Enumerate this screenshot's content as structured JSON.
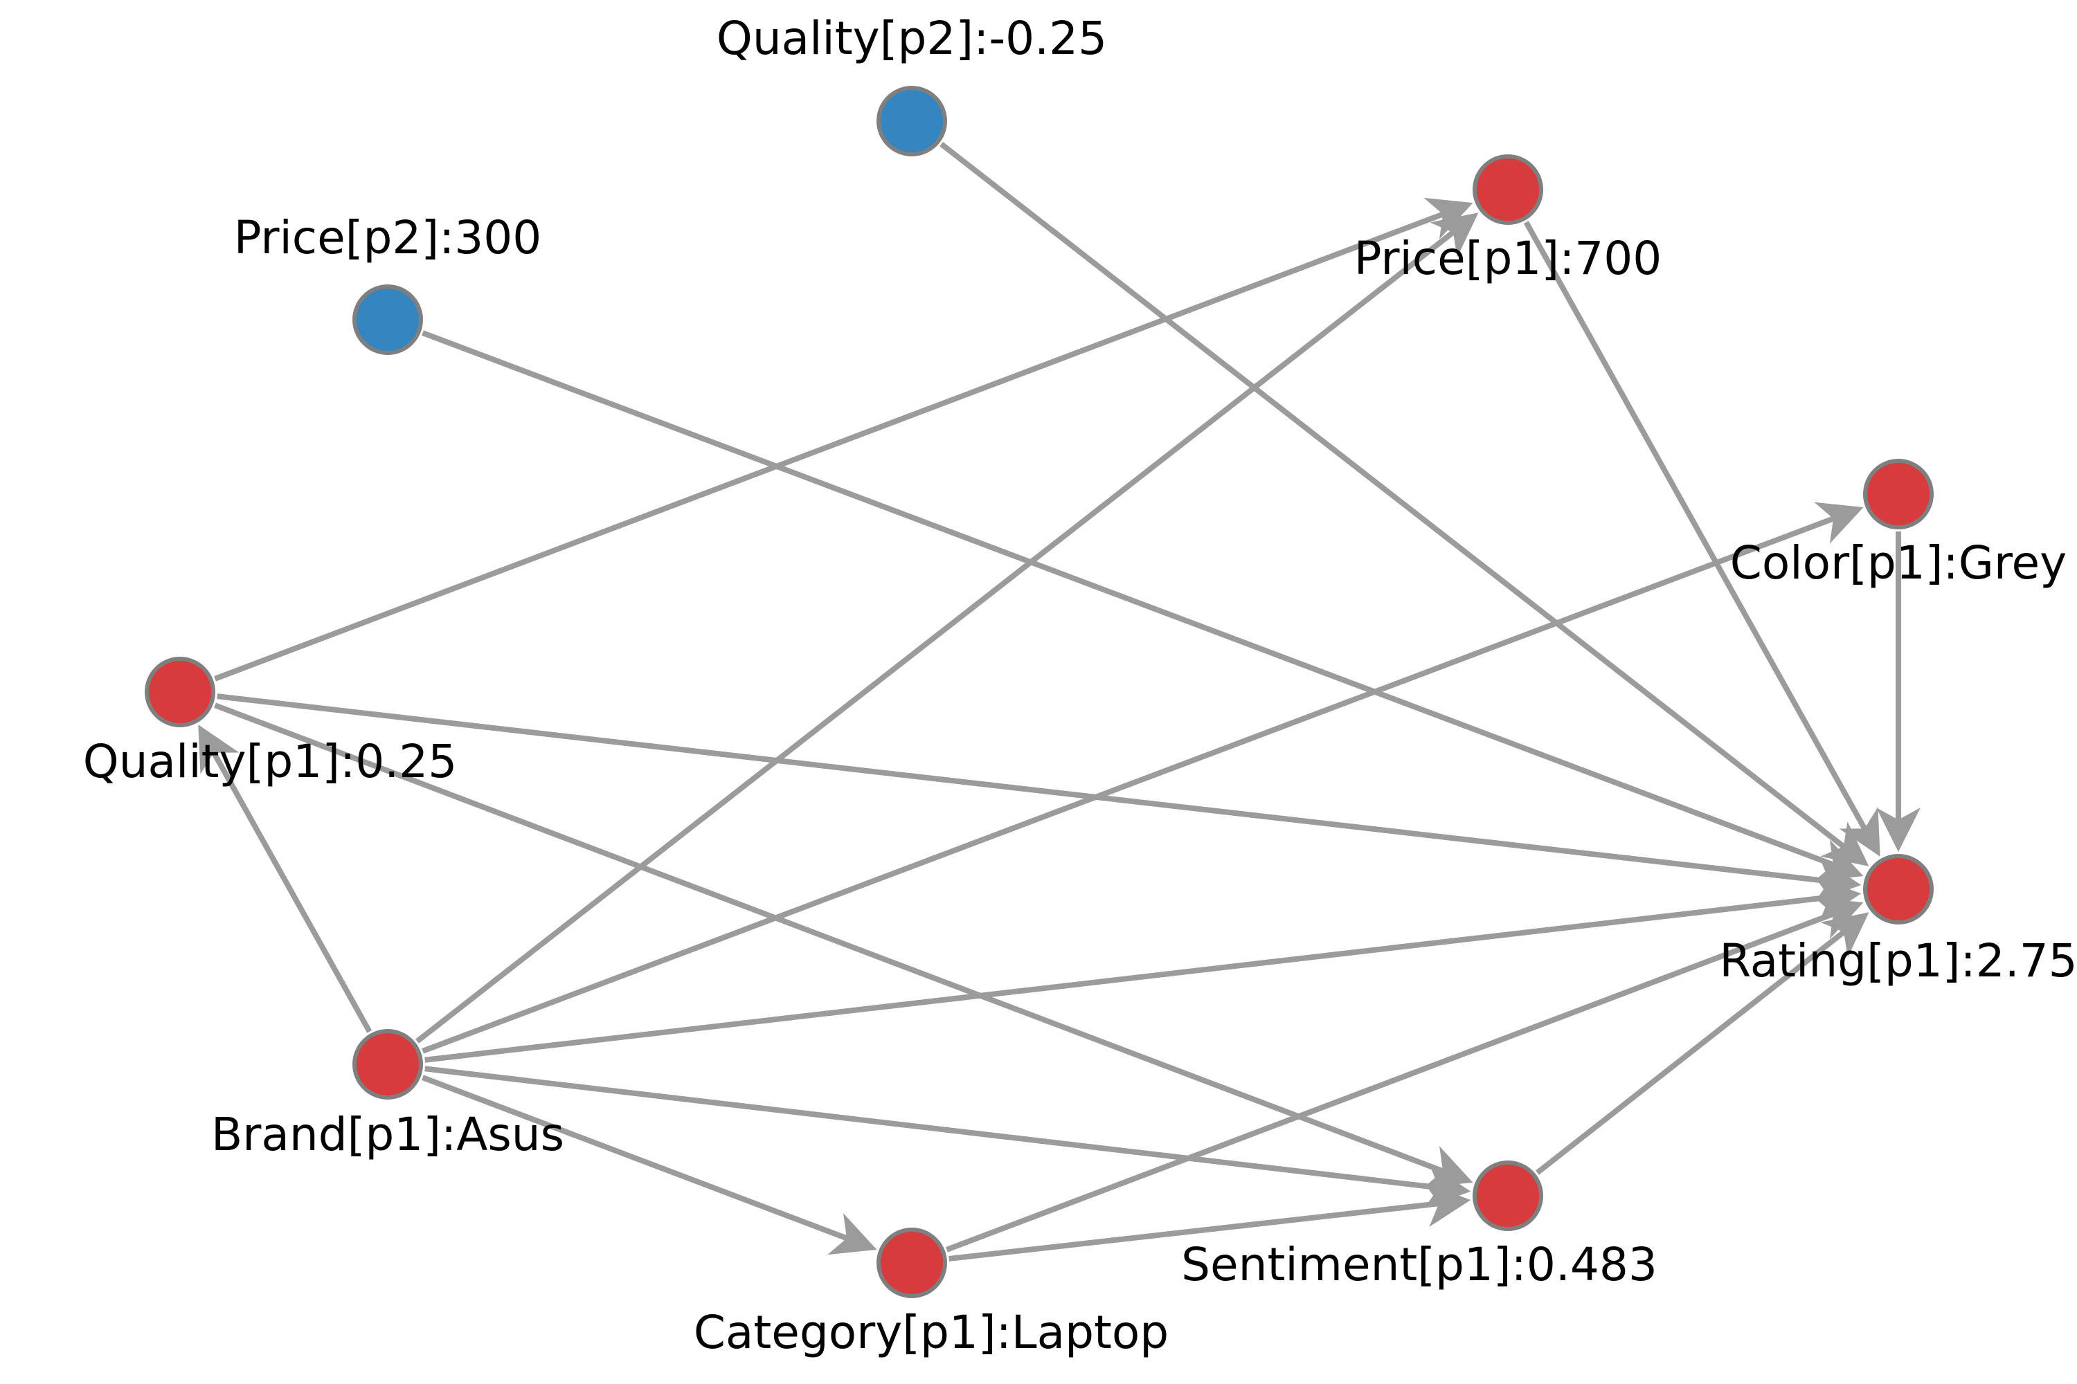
{
  "colors": {
    "edge": "#9b9b9b",
    "node_stroke": "#7f7f7f",
    "p1_node": "#d63b3d",
    "p2_node": "#3485c0"
  },
  "graph": {
    "nodes": [
      {
        "id": "quality_p2",
        "label": "Quality[p2]:-0.25",
        "group": "p2"
      },
      {
        "id": "price_p2",
        "label": "Price[p2]:300",
        "group": "p2"
      },
      {
        "id": "price_p1",
        "label": "Price[p1]:700",
        "group": "p1"
      },
      {
        "id": "color_p1",
        "label": "Color[p1]:Grey",
        "group": "p1"
      },
      {
        "id": "quality_p1",
        "label": "Quality[p1]:0.25",
        "group": "p1"
      },
      {
        "id": "rating_p1",
        "label": "Rating[p1]:2.75",
        "group": "p1"
      },
      {
        "id": "brand_p1",
        "label": "Brand[p1]:Asus",
        "group": "p1"
      },
      {
        "id": "sentiment_p1",
        "label": "Sentiment[p1]:0.483",
        "group": "p1"
      },
      {
        "id": "category_p1",
        "label": "Category[p1]:Laptop",
        "group": "p1"
      }
    ],
    "edges": [
      {
        "from": "quality_p2",
        "to": "rating_p1"
      },
      {
        "from": "price_p2",
        "to": "rating_p1"
      },
      {
        "from": "price_p1",
        "to": "rating_p1"
      },
      {
        "from": "color_p1",
        "to": "rating_p1"
      },
      {
        "from": "quality_p1",
        "to": "price_p1"
      },
      {
        "from": "quality_p1",
        "to": "rating_p1"
      },
      {
        "from": "quality_p1",
        "to": "sentiment_p1"
      },
      {
        "from": "brand_p1",
        "to": "quality_p1"
      },
      {
        "from": "brand_p1",
        "to": "price_p1"
      },
      {
        "from": "brand_p1",
        "to": "color_p1"
      },
      {
        "from": "brand_p1",
        "to": "rating_p1"
      },
      {
        "from": "brand_p1",
        "to": "sentiment_p1"
      },
      {
        "from": "brand_p1",
        "to": "category_p1"
      },
      {
        "from": "category_p1",
        "to": "sentiment_p1"
      },
      {
        "from": "category_p1",
        "to": "rating_p1"
      },
      {
        "from": "sentiment_p1",
        "to": "rating_p1"
      }
    ]
  }
}
